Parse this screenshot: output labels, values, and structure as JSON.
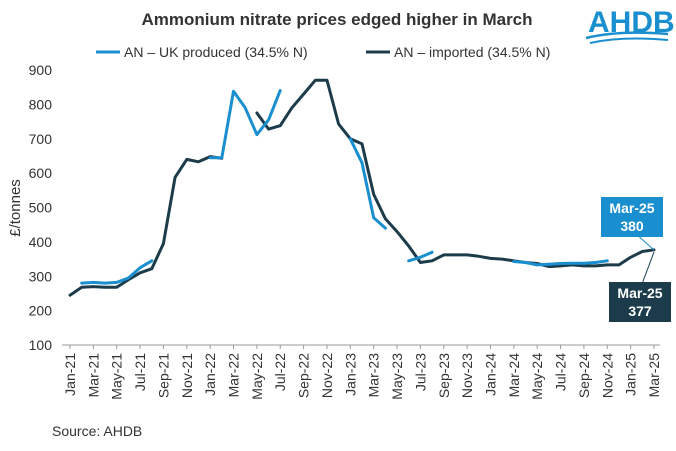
{
  "logo": {
    "text": "AHDB",
    "color": "#1a8fcf"
  },
  "source": "Source: AHDB",
  "chart_data": {
    "type": "line",
    "title": "Ammonium nitrate prices edged higher in March",
    "xlabel": "",
    "ylabel": "£/tonnes",
    "ylim": [
      100,
      900
    ],
    "yticks": [
      100,
      200,
      300,
      400,
      500,
      600,
      700,
      800,
      900
    ],
    "grid": false,
    "legend": "top",
    "x": [
      "Jan-21",
      "Feb-21",
      "Mar-21",
      "Apr-21",
      "May-21",
      "Jun-21",
      "Jul-21",
      "Aug-21",
      "Sep-21",
      "Oct-21",
      "Nov-21",
      "Dec-21",
      "Jan-22",
      "Feb-22",
      "Mar-22",
      "Apr-22",
      "May-22",
      "Jun-22",
      "Jul-22",
      "Aug-22",
      "Sep-22",
      "Oct-22",
      "Nov-22",
      "Dec-22",
      "Jan-23",
      "Feb-23",
      "Mar-23",
      "Apr-23",
      "May-23",
      "Jun-23",
      "Jul-23",
      "Aug-23",
      "Sep-23",
      "Oct-23",
      "Nov-23",
      "Dec-23",
      "Jan-24",
      "Feb-24",
      "Mar-24",
      "Apr-24",
      "May-24",
      "Jun-24",
      "Jul-24",
      "Aug-24",
      "Sep-24",
      "Oct-24",
      "Nov-24",
      "Dec-24",
      "Jan-25",
      "Feb-25",
      "Mar-25"
    ],
    "xtick_labels": [
      "Jan-21",
      "Mar-21",
      "May-21",
      "Jul-21",
      "Sep-21",
      "Nov-21",
      "Jan-22",
      "Mar-22",
      "May-22",
      "Jul-22",
      "Sep-22",
      "Nov-22",
      "Jan-23",
      "Mar-23",
      "May-23",
      "Jul-23",
      "Sep-23",
      "Nov-23",
      "Jan-24",
      "Mar-24",
      "May-24",
      "Jul-24",
      "Sep-24",
      "Nov-24",
      "Jan-25",
      "Mar-25"
    ],
    "series": [
      {
        "name": "AN – UK produced (34.5% N)",
        "color": "#1a8fcf",
        "values": [
          null,
          280,
          282,
          280,
          282,
          295,
          325,
          345,
          null,
          null,
          null,
          null,
          645,
          645,
          838,
          790,
          712,
          755,
          840,
          null,
          null,
          null,
          null,
          null,
          700,
          630,
          470,
          440,
          null,
          345,
          355,
          370,
          null,
          null,
          null,
          null,
          null,
          null,
          343,
          340,
          333,
          335,
          337,
          338,
          338,
          340,
          345,
          null,
          null,
          null,
          380
        ]
      },
      {
        "name": "AN – imported (34.5% N)",
        "color": "#1d3c4b",
        "values": [
          245,
          268,
          270,
          268,
          268,
          290,
          310,
          322,
          395,
          588,
          640,
          633,
          648,
          643,
          null,
          null,
          775,
          728,
          738,
          790,
          830,
          870,
          870,
          743,
          700,
          685,
          538,
          467,
          430,
          388,
          340,
          345,
          362,
          362,
          362,
          358,
          352,
          350,
          345,
          340,
          337,
          328,
          330,
          333,
          330,
          330,
          333,
          333,
          355,
          372,
          377
        ]
      }
    ],
    "annotations": [
      {
        "label": "Mar-25",
        "value": "380",
        "series": "AN – UK produced (34.5% N)",
        "color": "#1a8fcf"
      },
      {
        "label": "Mar-25",
        "value": "377",
        "series": "AN – imported (34.5% N)",
        "color": "#1d3c4b"
      }
    ]
  }
}
